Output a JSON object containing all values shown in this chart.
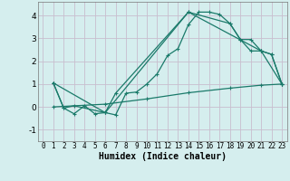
{
  "xlabel": "Humidex (Indice chaleur)",
  "background_color": "#d5eeee",
  "grid_color": "#c8bece",
  "line_color": "#1a7a6a",
  "xlim": [
    -0.5,
    23.5
  ],
  "ylim": [
    -1.5,
    4.6
  ],
  "yticks": [
    -1,
    0,
    1,
    2,
    3,
    4
  ],
  "xticks": [
    0,
    1,
    2,
    3,
    4,
    5,
    6,
    7,
    8,
    9,
    10,
    11,
    12,
    13,
    14,
    15,
    16,
    17,
    18,
    19,
    20,
    21,
    22,
    23
  ],
  "line1_x": [
    1,
    2,
    3,
    4,
    5,
    6,
    7,
    8,
    9,
    10,
    11,
    12,
    13,
    14,
    15,
    16,
    17,
    18,
    19,
    20,
    21,
    22,
    23
  ],
  "line1_y": [
    1.05,
    -0.05,
    -0.3,
    0.05,
    -0.3,
    -0.25,
    -0.35,
    0.6,
    0.65,
    1.0,
    1.45,
    2.25,
    2.55,
    3.6,
    4.15,
    4.15,
    4.05,
    3.65,
    2.95,
    2.95,
    2.45,
    2.3,
    1.0
  ],
  "line2_x": [
    1,
    2,
    3,
    6,
    7,
    14,
    18,
    19,
    20,
    21,
    22,
    23
  ],
  "line2_y": [
    1.05,
    -0.05,
    0.05,
    -0.25,
    0.6,
    4.15,
    3.65,
    2.95,
    2.45,
    2.45,
    2.3,
    1.0
  ],
  "line3_x": [
    1,
    6,
    14,
    21,
    23
  ],
  "line3_y": [
    1.05,
    -0.25,
    4.15,
    2.45,
    1.0
  ],
  "line4_x": [
    1,
    6,
    10,
    14,
    18,
    21,
    23
  ],
  "line4_y": [
    0.0,
    0.12,
    0.35,
    0.62,
    0.82,
    0.95,
    1.0
  ]
}
